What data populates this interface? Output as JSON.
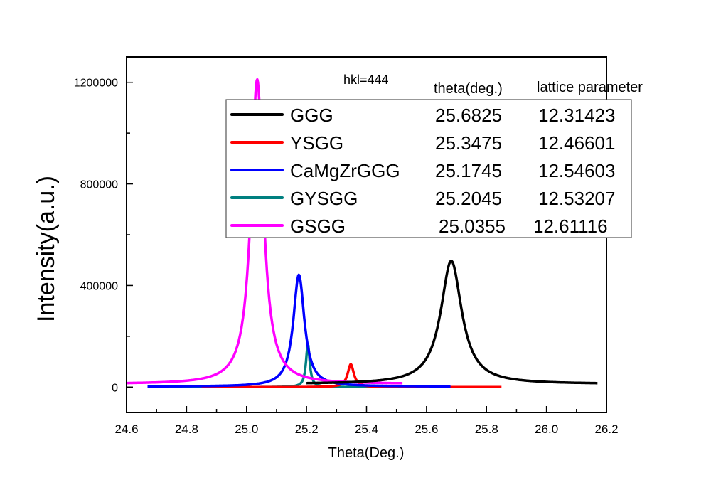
{
  "chart_data": {
    "type": "line",
    "title": "",
    "xlabel": "Theta(Deg.)",
    "ylabel": "Intensity(a.u.)",
    "xlim": [
      24.6,
      26.2
    ],
    "ylim": [
      -100000,
      1300000
    ],
    "xticks": [
      "24.6",
      "24.8",
      "25.0",
      "25.2",
      "25.4",
      "25.6",
      "25.8",
      "26.0",
      "26.2"
    ],
    "yticks": [
      "0",
      "400000",
      "800000",
      "1200000"
    ],
    "grid": false,
    "legend_placement": "top-right",
    "annotation": "hkl=444",
    "legend_columns": [
      "theta(deg.)",
      "lattice parameter"
    ],
    "series": [
      {
        "name": "GGG",
        "color": "#000000",
        "theta": "25.6825",
        "lattice": "12.31423",
        "peak_x": 25.6825,
        "peak_y": 485000,
        "fwhm": 0.085,
        "baseline": 12000,
        "x_range": [
          25.2,
          26.17
        ]
      },
      {
        "name": "YSGG",
        "color": "#ff0000",
        "theta": "25.3475",
        "lattice": "12.46601",
        "peak_x": 25.3475,
        "peak_y": 90000,
        "fwhm": 0.025,
        "baseline": 0,
        "x_range": [
          24.85,
          25.85
        ]
      },
      {
        "name": "CaMgZrGGG",
        "color": "#0000ff",
        "theta": "25.1745",
        "lattice": "12.54603",
        "peak_x": 25.1745,
        "peak_y": 440000,
        "fwhm": 0.045,
        "baseline": 2000,
        "x_range": [
          24.67,
          25.68
        ]
      },
      {
        "name": "GYSGG",
        "color": "#008080",
        "theta": "25.2045",
        "lattice": "12.53207",
        "peak_x": 25.2045,
        "peak_y": 170000,
        "fwhm": 0.015,
        "baseline": 0,
        "x_range": [
          24.71,
          25.69
        ]
      },
      {
        "name": "GSGG",
        "color": "#ff00ff",
        "theta": "25.0355",
        "lattice": "12.61116",
        "peak_x": 25.0355,
        "peak_y": 1200000,
        "fwhm": 0.05,
        "baseline": 12000,
        "x_range": [
          24.6,
          25.52
        ]
      }
    ]
  }
}
